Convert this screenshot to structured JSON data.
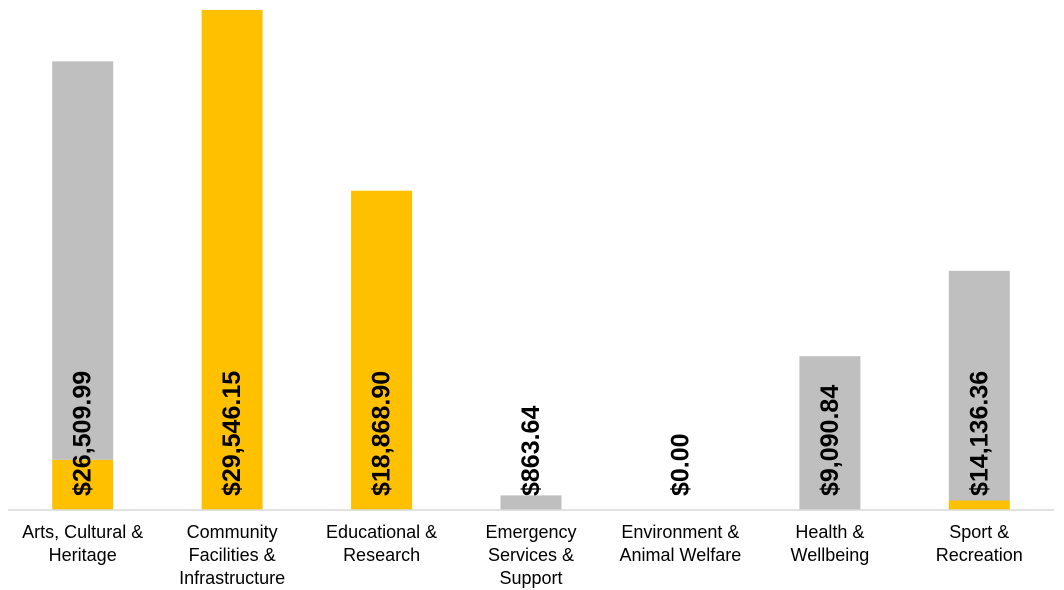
{
  "chart_data": {
    "type": "bar",
    "stacked": true,
    "categories": [
      [
        "Arts, Cultural &",
        "Heritage"
      ],
      [
        "Community",
        "Facilities &",
        "Infrastructure"
      ],
      [
        "Educational &",
        "Research"
      ],
      [
        "Emergency",
        "Services &",
        "Support"
      ],
      [
        "Environment &",
        "Animal Welfare"
      ],
      [
        "Health &",
        "Wellbeing"
      ],
      [
        "Sport &",
        "Recreation"
      ]
    ],
    "series": [
      {
        "color": "#FFC000",
        "values": [
          2967,
          29546.15,
          18868.9,
          0,
          0,
          0,
          563
        ]
      },
      {
        "color": "#BFBFBF",
        "values": [
          23542.99,
          0,
          0,
          863.64,
          0,
          9090.84,
          13573.36
        ]
      }
    ],
    "data_labels": [
      "$26,509.99",
      "$29,546.15",
      "$18,868.90",
      "$863.64",
      "$0.00",
      "$9,090.84",
      "$14,136.36"
    ],
    "ylim": [
      0,
      29546.15
    ],
    "grid": false,
    "legend": "none",
    "title": "",
    "xlabel": "",
    "ylabel": ""
  }
}
